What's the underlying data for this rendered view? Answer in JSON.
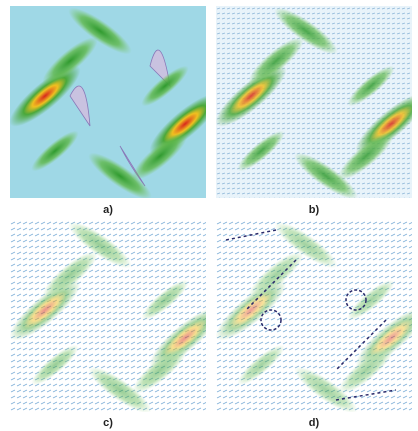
{
  "figure": {
    "panels": [
      {
        "label": "a)"
      },
      {
        "label": "b)"
      },
      {
        "label": "c)"
      },
      {
        "label": "d)"
      }
    ]
  }
}
